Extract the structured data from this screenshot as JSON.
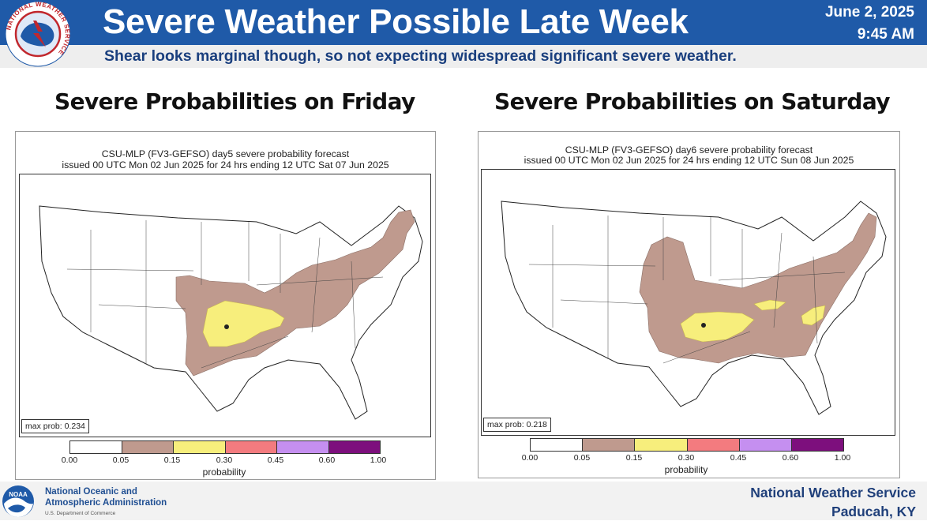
{
  "header": {
    "title": "Severe Weather Possible Late Week",
    "subtitle": "Shear looks marginal though, so not expecting widespread significant severe weather.",
    "date": "June 2, 2025",
    "time": "9:45 AM",
    "logo_ring_text": "NATIONAL WEATHER SERVICE",
    "colors": {
      "banner": "#1f5aa8",
      "subtitle": "#1a3f7e"
    }
  },
  "panels": [
    {
      "heading": "Severe Probabilities on Friday",
      "caption_line1": "CSU-MLP (FV3-GEFSO) day5 severe probability forecast",
      "caption_line2": "issued 00 UTC Mon 02 Jun 2025 for 24 hrs ending 12 UTC Sat 07 Jun 2025",
      "max_prob": "max prob: 0.234",
      "colorbar_label": "probability"
    },
    {
      "heading": "Severe Probabilities on Saturday",
      "caption_line1": "CSU-MLP (FV3-GEFSO) day6 severe probability forecast",
      "caption_line2": "issued 00 UTC Mon 02 Jun 2025 for 24 hrs ending 12 UTC Sun 08 Jun 2025",
      "max_prob": "max prob: 0.218",
      "colorbar_label": "probability"
    }
  ],
  "colorbar": {
    "ticks": [
      "0.00",
      "0.05",
      "0.15",
      "0.30",
      "0.45",
      "0.60",
      "1.00"
    ],
    "colors": [
      "#ffffff",
      "#bf9a8e",
      "#f7ee7c",
      "#f37b7f",
      "#c58ff0",
      "#7d0f7d"
    ]
  },
  "footer": {
    "noaa_line1": "National Oceanic and",
    "noaa_line2": "Atmospheric Administration",
    "noaa_line3": "U.S. Department of Commerce",
    "noaa_logo_text": "NOAA",
    "nws_line1": "National Weather Service",
    "nws_line2": "Paducah, KY"
  }
}
